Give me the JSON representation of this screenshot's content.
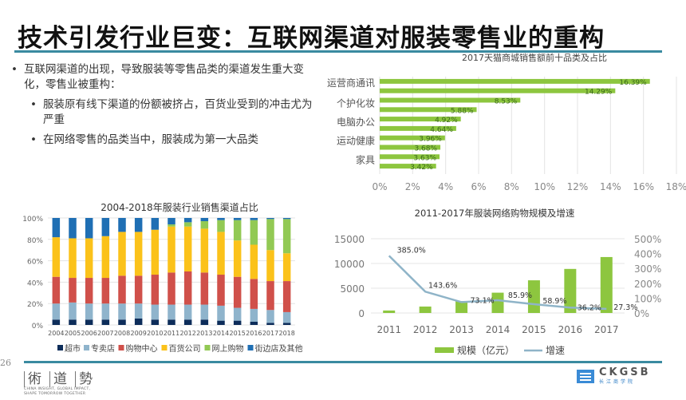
{
  "slide": {
    "title": "技术引发行业巨变：互联网渠道对服装零售业的重构",
    "page_number": "26",
    "bullets": {
      "main": "互联网渠道的出现，导致服装等零售品类的渠道发生重大变化，零售业被重构：",
      "sub": [
        "服装原有线下渠道的份额被挤占，百货业受到的冲击尤为严重",
        "在网络零售的品类当中，服装成为第一大品类"
      ]
    },
    "footer": {
      "left_logo_chars": [
        "術",
        "道",
        "勢"
      ],
      "left_logo_tagline_1": "CHINA INSIGHT, GLOBAL IMPACT,",
      "left_logo_tagline_2": "SHAPE TOMORROW TOGETHER",
      "right_logo_name": "CKGSB",
      "right_logo_sub": "长江商学院"
    }
  },
  "colors": {
    "accent_rule": "#3a8aa0",
    "bar_green": "#8dc63f",
    "line_blue": "#8fb4c8",
    "supermarket": "#0d2d5a",
    "specialty": "#8fb4cc",
    "mall": "#d0504a",
    "dept_store": "#fbc21a",
    "online": "#92c954",
    "street": "#1f6fb4"
  },
  "chart_data": [
    {
      "type": "bar",
      "orientation": "horizontal",
      "title": "2017天猫商城销售额前十品类及占比",
      "categories": [
        "运营商通讯",
        "",
        "个护化妆",
        "",
        "电脑办公",
        "",
        "运动健康",
        "",
        "家具"
      ],
      "values": [
        16.39,
        14.29,
        8.53,
        5.88,
        4.92,
        4.64,
        3.96,
        3.68,
        3.63,
        3.42
      ],
      "visible_labels": [
        "运营商通讯",
        "个护化妆",
        "电脑办公",
        "运动健康",
        "家具"
      ],
      "data_labels": [
        "16.39%",
        "14.29%",
        "8.53%",
        "5.88%",
        "4.92%",
        "4.64%",
        "3.96%",
        "3.68%",
        "3.63%",
        "3.42%"
      ],
      "x_ticks": [
        "0%",
        "2%",
        "4%",
        "6%",
        "8%",
        "10%",
        "12%",
        "14%",
        "16%",
        "18%"
      ],
      "xlim": [
        0,
        18
      ],
      "grid": true
    },
    {
      "type": "bar",
      "stacked": true,
      "title": "2004-2018年服装行业销售渠道占比",
      "categories": [
        "2004",
        "2005",
        "2006",
        "2007",
        "2008",
        "2009",
        "2010",
        "2011",
        "2012",
        "2013",
        "2014",
        "2015",
        "2016",
        "2017",
        "2018"
      ],
      "series": [
        {
          "name": "超市",
          "values": [
            5,
            5,
            5,
            5,
            5,
            6,
            5,
            5,
            5,
            5,
            4,
            4,
            3,
            2,
            2
          ]
        },
        {
          "name": "专卖店",
          "values": [
            15,
            16,
            15,
            15,
            15,
            14,
            14,
            14,
            14,
            14,
            14,
            12,
            12,
            12,
            10
          ]
        },
        {
          "name": "购物中心",
          "values": [
            25,
            23,
            24,
            24,
            26,
            26,
            28,
            30,
            31,
            30,
            29,
            29,
            28,
            27,
            29
          ]
        },
        {
          "name": "百货公司",
          "values": [
            37,
            37,
            37,
            39,
            41,
            41,
            42,
            43,
            42,
            41,
            40,
            34,
            32,
            29,
            26
          ]
        },
        {
          "name": "网上购物",
          "values": [
            0,
            0,
            0,
            0,
            0,
            0,
            0,
            2,
            4,
            7,
            11,
            19,
            23,
            29,
            32
          ]
        },
        {
          "name": "街边店及其他",
          "values": [
            18,
            19,
            19,
            17,
            13,
            13,
            11,
            6,
            4,
            3,
            2,
            2,
            2,
            1,
            1
          ]
        }
      ],
      "y_ticks": [
        "0%",
        "20%",
        "40%",
        "60%",
        "80%",
        "100%"
      ],
      "ylim": [
        0,
        100
      ],
      "legend": "bottom",
      "grid": true
    },
    {
      "type": "bar-line",
      "title": "2011-2017年服装网络购物规模及增速",
      "categories": [
        "2011",
        "2012",
        "2013",
        "2014",
        "2015",
        "2016",
        "2017"
      ],
      "series": [
        {
          "name": "规模（亿元）",
          "type": "bar",
          "axis": "left",
          "values": [
            500,
            1300,
            2400,
            4100,
            6600,
            8900,
            11300
          ]
        },
        {
          "name": "增速",
          "type": "line",
          "axis": "right",
          "values": [
            385.0,
            143.6,
            73.1,
            85.9,
            58.9,
            36.2,
            27.3
          ],
          "labels": [
            "385.0%",
            "143.6%",
            "73.1%",
            "85.9%",
            "58.9%",
            "36.2%",
            "27.3%"
          ]
        }
      ],
      "y_left_ticks": [
        "0",
        "5000",
        "10000",
        "15000"
      ],
      "y_left_lim": [
        0,
        15000
      ],
      "y_right_ticks": [
        "0%",
        "100%",
        "200%",
        "300%",
        "400%",
        "500%"
      ],
      "y_right_lim": [
        0,
        500
      ],
      "legend": "bottom",
      "grid": true
    }
  ]
}
